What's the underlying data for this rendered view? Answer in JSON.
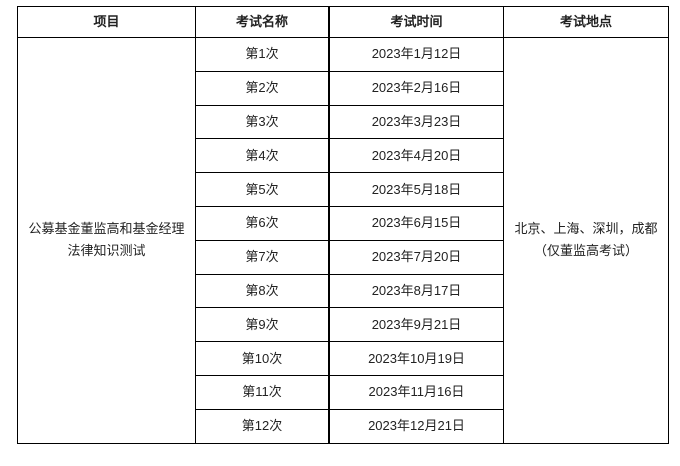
{
  "headers": [
    "项目",
    "考试名称",
    "考试时间",
    "考试地点"
  ],
  "project": "公募基金董监高和基金经理法律知识测试",
  "location": "北京、上海、深圳，成都（仅董监高考试）",
  "rows": [
    {
      "name": "第1次",
      "date": "2023年1月12日"
    },
    {
      "name": "第2次",
      "date": "2023年2月16日"
    },
    {
      "name": "第3次",
      "date": "2023年3月23日"
    },
    {
      "name": "第4次",
      "date": "2023年4月20日"
    },
    {
      "name": "第5次",
      "date": "2023年5月18日"
    },
    {
      "name": "第6次",
      "date": "2023年6月15日"
    },
    {
      "name": "第7次",
      "date": "2023年7月20日"
    },
    {
      "name": "第8次",
      "date": "2023年8月17日"
    },
    {
      "name": "第9次",
      "date": "2023年9月21日"
    },
    {
      "name": "第10次",
      "date": "2023年10月19日"
    },
    {
      "name": "第11次",
      "date": "2023年11月16日"
    },
    {
      "name": "第12次",
      "date": "2023年12月21日"
    }
  ]
}
